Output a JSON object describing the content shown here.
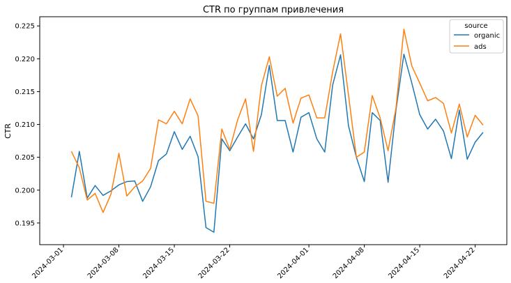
{
  "chart_data": {
    "type": "line",
    "title": "CTR по группам привлечения",
    "xlabel": "",
    "ylabel": "CTR",
    "x": [
      "2024-03-02",
      "2024-03-03",
      "2024-03-04",
      "2024-03-05",
      "2024-03-06",
      "2024-03-07",
      "2024-03-08",
      "2024-03-09",
      "2024-03-10",
      "2024-03-11",
      "2024-03-12",
      "2024-03-13",
      "2024-03-14",
      "2024-03-15",
      "2024-03-16",
      "2024-03-17",
      "2024-03-18",
      "2024-03-19",
      "2024-03-20",
      "2024-03-21",
      "2024-03-22",
      "2024-03-23",
      "2024-03-24",
      "2024-03-25",
      "2024-03-26",
      "2024-03-27",
      "2024-03-28",
      "2024-03-29",
      "2024-03-30",
      "2024-03-31",
      "2024-04-01",
      "2024-04-02",
      "2024-04-03",
      "2024-04-04",
      "2024-04-05",
      "2024-04-06",
      "2024-04-07",
      "2024-04-08",
      "2024-04-09",
      "2024-04-10",
      "2024-04-11",
      "2024-04-12",
      "2024-04-13",
      "2024-04-14",
      "2024-04-15",
      "2024-04-16",
      "2024-04-17",
      "2024-04-18",
      "2024-04-19",
      "2024-04-20",
      "2024-04-21",
      "2024-04-22",
      "2024-04-23"
    ],
    "series": [
      {
        "name": "organic",
        "color": "#1f77b4",
        "values": [
          0.1989,
          0.2059,
          0.1988,
          0.2007,
          0.1992,
          0.1999,
          0.2008,
          0.2013,
          0.2014,
          0.1983,
          0.2005,
          0.2045,
          0.2055,
          0.2089,
          0.2062,
          0.2082,
          0.2051,
          0.1943,
          0.1936,
          0.2078,
          0.206,
          0.2081,
          0.2101,
          0.2078,
          0.2115,
          0.219,
          0.2106,
          0.2106,
          0.2058,
          0.2111,
          0.2118,
          0.2078,
          0.2058,
          0.216,
          0.2206,
          0.2098,
          0.205,
          0.2013,
          0.2118,
          0.2106,
          0.2012,
          0.2122,
          0.2207,
          0.2163,
          0.2115,
          0.2093,
          0.2108,
          0.209,
          0.2048,
          0.2122,
          0.2047,
          0.2073,
          0.2088
        ]
      },
      {
        "name": "ads",
        "color": "#ff7f0e",
        "values": [
          0.2059,
          0.2034,
          0.1985,
          0.1995,
          0.1966,
          0.1994,
          0.2056,
          0.1991,
          0.2005,
          0.2014,
          0.2033,
          0.2107,
          0.2101,
          0.212,
          0.2101,
          0.2139,
          0.2113,
          0.1983,
          0.198,
          0.2093,
          0.2062,
          0.2107,
          0.2139,
          0.2059,
          0.2159,
          0.2203,
          0.2143,
          0.2155,
          0.2102,
          0.214,
          0.2145,
          0.211,
          0.211,
          0.218,
          0.2238,
          0.2145,
          0.205,
          0.2058,
          0.2144,
          0.211,
          0.206,
          0.2125,
          0.2245,
          0.2189,
          0.2163,
          0.2136,
          0.2141,
          0.2132,
          0.2087,
          0.2131,
          0.2081,
          0.2114,
          0.2099
        ]
      }
    ],
    "x_ticks": [
      "2024-03-01",
      "2024-03-08",
      "2024-03-15",
      "2024-03-22",
      "2024-04-01",
      "2024-04-08",
      "2024-04-15",
      "2024-04-22"
    ],
    "y_ticks": [
      0.195,
      0.2,
      0.205,
      0.21,
      0.215,
      0.22,
      0.225
    ],
    "xlim": [
      "2024-02-27",
      "2024-04-26"
    ],
    "ylim": [
      0.1917,
      0.2264
    ],
    "grid": false,
    "legend": {
      "title": "source",
      "placement": "top-right"
    }
  }
}
